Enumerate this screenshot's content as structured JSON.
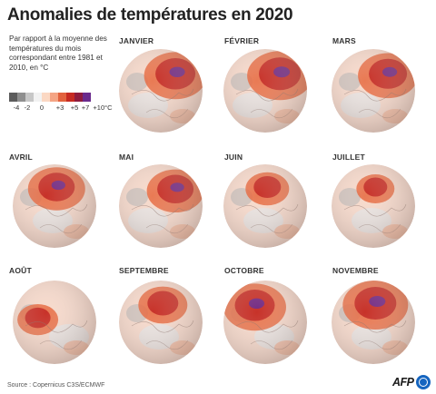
{
  "title": "Anomalies de températures en 2020",
  "intro": "Par rapport à la moyenne des températures du mois correspondant entre 1981 et 2010, en °C",
  "legend": {
    "ticks": [
      "-4",
      "-2",
      "0",
      "+3",
      "+5",
      "+7",
      "+10°C"
    ],
    "colors": [
      "#5c5c5c",
      "#8f8f8f",
      "#c7c7c7",
      "#f2f2f2",
      "#fbd8c3",
      "#f4a484",
      "#e2623e",
      "#c62a22",
      "#8e1b3d",
      "#6a2a8c"
    ]
  },
  "months": [
    {
      "name": "JANVIER",
      "hot": "north-east",
      "intensity": 0.95
    },
    {
      "name": "FÉVRIER",
      "hot": "north-east",
      "intensity": 1.0
    },
    {
      "name": "MARS",
      "hot": "north-east",
      "intensity": 0.9
    },
    {
      "name": "AVRIL",
      "hot": "north",
      "intensity": 0.85
    },
    {
      "name": "MAI",
      "hot": "north-east",
      "intensity": 0.85
    },
    {
      "name": "JUIN",
      "hot": "north",
      "intensity": 0.6
    },
    {
      "name": "JUILLET",
      "hot": "north",
      "intensity": 0.5
    },
    {
      "name": "AOÛT",
      "hot": "west",
      "intensity": 0.55
    },
    {
      "name": "SEPTEMBRE",
      "hot": "north",
      "intensity": 0.7
    },
    {
      "name": "OCTOBRE",
      "hot": "north-west",
      "intensity": 0.95
    },
    {
      "name": "NOVEMBRE",
      "hot": "north",
      "intensity": 1.0
    }
  ],
  "source": "Source : Copernicus C3S/ECMWF",
  "brand": "AFP"
}
